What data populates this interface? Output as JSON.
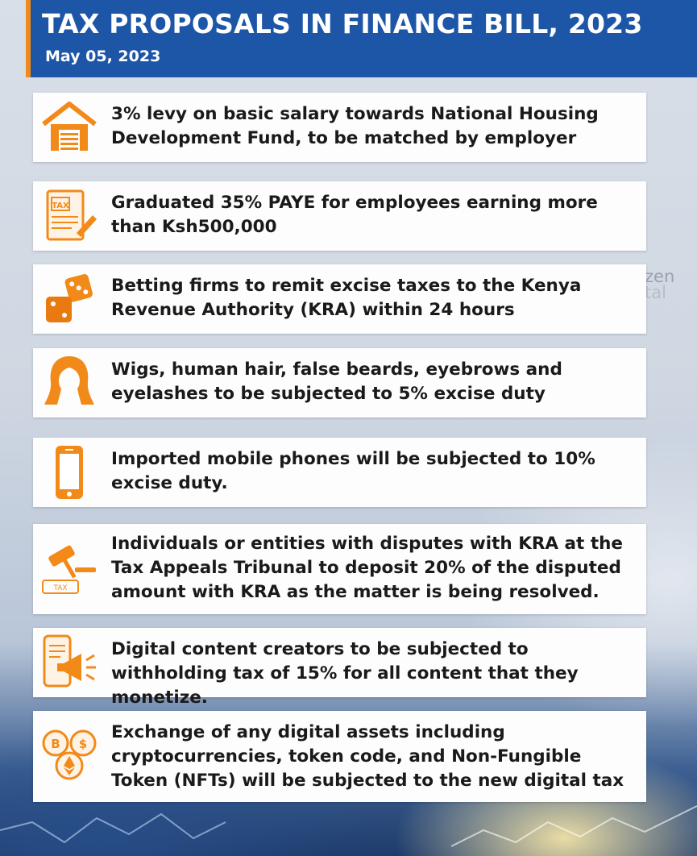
{
  "header": {
    "title": "TAX PROPOSALS IN FINANCE BILL, 2023",
    "date": "May 05, 2023"
  },
  "watermark": {
    "line1": "zen",
    "line2": "tal"
  },
  "colors": {
    "accent": "#f28a1a",
    "header_bg": "#1e56a7"
  },
  "items": [
    {
      "icon": "house-icon",
      "text": "3% levy on basic salary towards National Housing Development Fund, to be matched by employer"
    },
    {
      "icon": "tax-document-icon",
      "text": "Graduated 35% PAYE for employees earning more than Ksh500,000"
    },
    {
      "icon": "dice-icon",
      "text": "Betting firms to remit excise taxes to the Kenya Revenue Authority (KRA) within 24 hours"
    },
    {
      "icon": "wig-icon",
      "text": "Wigs, human hair, false beards, eyebrows and eyelashes to be subjected to 5% excise duty"
    },
    {
      "icon": "mobile-phone-icon",
      "text": "Imported mobile phones will be subjected to 10% excise duty."
    },
    {
      "icon": "gavel-icon",
      "icon_label": "TAX",
      "text": "Individuals or entities with disputes with KRA at the Tax Appeals Tribunal to deposit 20% of the disputed amount with KRA as the matter is being resolved."
    },
    {
      "icon": "digital-content-icon",
      "text": "Digital content creators to be subjected to withholding tax of 15% for all content that they monetize."
    },
    {
      "icon": "crypto-coins-icon",
      "text": "Exchange of any digital assets including cryptocurrencies, token code, and Non-Fungible Token (NFTs) will be subjected to the new digital tax"
    }
  ]
}
